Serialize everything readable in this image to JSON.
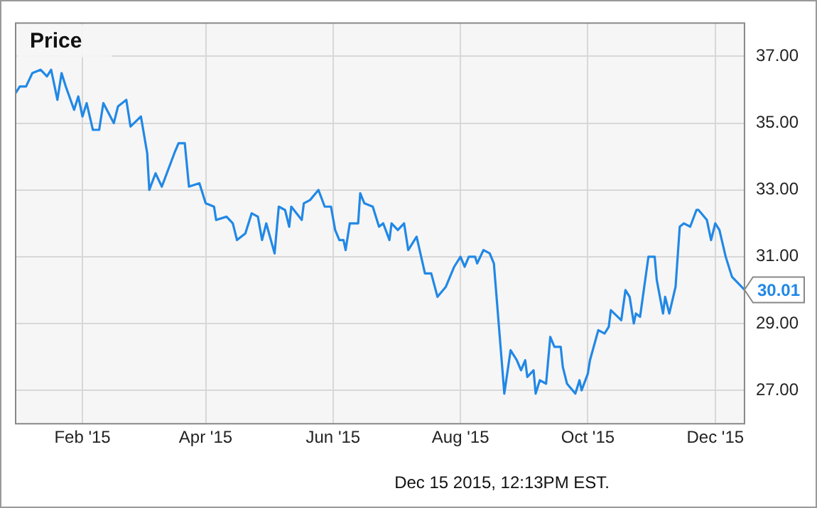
{
  "chart_data": {
    "type": "line",
    "title": "Price",
    "annotations": [
      {
        "text": "30.01",
        "x": "2015-12-15",
        "y": 30.01
      },
      "Dec 15 2015, 12:13PM EST."
    ],
    "x": [
      "2014-12-31",
      "2015-01-02",
      "2015-01-05",
      "2015-01-08",
      "2015-01-12",
      "2015-01-15",
      "2015-01-17",
      "2015-01-20",
      "2015-01-22",
      "2015-01-24",
      "2015-01-28",
      "2015-01-30",
      "2015-02-01",
      "2015-02-03",
      "2015-02-06",
      "2015-02-09",
      "2015-02-11",
      "2015-02-16",
      "2015-02-18",
      "2015-02-22",
      "2015-02-24",
      "2015-03-01",
      "2015-03-04",
      "2015-03-05",
      "2015-03-08",
      "2015-03-11",
      "2015-03-17",
      "2015-03-19",
      "2015-03-22",
      "2015-03-24",
      "2015-03-29",
      "2015-04-01",
      "2015-04-05",
      "2015-04-06",
      "2015-04-11",
      "2015-04-14",
      "2015-04-16",
      "2015-04-20",
      "2015-04-23",
      "2015-04-26",
      "2015-04-28",
      "2015-04-30",
      "2015-05-04",
      "2015-05-06",
      "2015-05-09",
      "2015-05-11",
      "2015-05-12",
      "2015-05-17",
      "2015-05-18",
      "2015-05-21",
      "2015-05-25",
      "2015-05-28",
      "2015-05-31",
      "2015-06-02",
      "2015-06-04",
      "2015-06-06",
      "2015-06-07",
      "2015-06-09",
      "2015-06-13",
      "2015-06-14",
      "2015-06-16",
      "2015-06-20",
      "2015-06-23",
      "2015-06-25",
      "2015-06-28",
      "2015-06-29",
      "2015-07-02",
      "2015-07-05",
      "2015-07-07",
      "2015-07-11",
      "2015-07-15",
      "2015-07-18",
      "2015-07-21",
      "2015-07-25",
      "2015-07-29",
      "2015-08-01",
      "2015-08-03",
      "2015-08-05",
      "2015-08-08",
      "2015-08-09",
      "2015-08-12",
      "2015-08-15",
      "2015-08-17",
      "2015-08-22",
      "2015-08-25",
      "2015-08-28",
      "2015-08-30",
      "2015-09-01",
      "2015-09-02",
      "2015-09-05",
      "2015-09-06",
      "2015-09-08",
      "2015-09-11",
      "2015-09-13",
      "2015-09-15",
      "2015-09-18",
      "2015-09-19",
      "2015-09-21",
      "2015-09-25",
      "2015-09-27",
      "2015-09-28",
      "2015-10-01",
      "2015-10-02",
      "2015-10-06",
      "2015-10-09",
      "2015-10-11",
      "2015-10-12",
      "2015-10-17",
      "2015-10-19",
      "2015-10-21",
      "2015-10-23",
      "2015-10-24",
      "2015-10-26",
      "2015-10-30",
      "2015-11-02",
      "2015-11-03",
      "2015-11-06",
      "2015-11-07",
      "2015-11-09",
      "2015-11-12",
      "2015-11-14",
      "2015-11-16",
      "2015-11-19",
      "2015-11-22",
      "2015-11-23",
      "2015-11-27",
      "2015-11-29",
      "2015-12-01",
      "2015-12-03",
      "2015-12-06",
      "2015-12-09",
      "2015-12-15"
    ],
    "series": [
      {
        "color": "#2188e6",
        "values": [
          35.9,
          36.1,
          36.1,
          36.5,
          36.6,
          36.4,
          36.6,
          35.7,
          36.5,
          36.1,
          35.4,
          35.8,
          35.2,
          35.6,
          34.8,
          34.8,
          35.6,
          35.0,
          35.5,
          35.7,
          34.9,
          35.2,
          34.1,
          33.0,
          33.5,
          33.1,
          34.1,
          34.4,
          34.4,
          33.1,
          33.2,
          32.6,
          32.5,
          32.1,
          32.2,
          32.0,
          31.5,
          31.7,
          32.3,
          32.2,
          31.5,
          32.0,
          31.1,
          32.5,
          32.4,
          31.9,
          32.5,
          32.1,
          32.6,
          32.7,
          33.0,
          32.5,
          32.5,
          31.8,
          31.5,
          31.5,
          31.2,
          32.0,
          32.0,
          32.9,
          32.6,
          32.5,
          31.9,
          32.0,
          31.5,
          32.0,
          31.8,
          32.0,
          31.2,
          31.6,
          30.5,
          30.5,
          29.8,
          30.1,
          30.7,
          31.0,
          30.7,
          31.0,
          31.0,
          30.8,
          31.2,
          31.1,
          30.8,
          26.9,
          28.2,
          27.9,
          27.6,
          27.9,
          27.4,
          27.6,
          26.9,
          27.3,
          27.2,
          28.6,
          28.3,
          28.3,
          27.7,
          27.2,
          26.9,
          27.3,
          27.0,
          27.5,
          27.9,
          28.8,
          28.7,
          28.9,
          29.4,
          29.1,
          30.0,
          29.8,
          29.0,
          29.3,
          29.2,
          31.0,
          31.0,
          30.3,
          29.3,
          29.8,
          29.3,
          30.1,
          31.9,
          32.0,
          31.9,
          32.4,
          32.4,
          32.1,
          31.5,
          32.0,
          31.8,
          31.0,
          30.4,
          30.01
        ]
      }
    ],
    "xlim": [
      "2014-12-31",
      "2015-12-15"
    ],
    "xticks": [
      {
        "value": "2015-02-01",
        "label": "Feb '15"
      },
      {
        "value": "2015-04-01",
        "label": "Apr '15"
      },
      {
        "value": "2015-06-01",
        "label": "Jun '15"
      },
      {
        "value": "2015-08-01",
        "label": "Aug '15"
      },
      {
        "value": "2015-10-01",
        "label": "Oct '15"
      },
      {
        "value": "2015-12-01",
        "label": "Dec '15"
      }
    ],
    "ylim": [
      26,
      38
    ],
    "yticks": [
      {
        "value": 27,
        "label": "27.00"
      },
      {
        "value": 29,
        "label": "29.00"
      },
      {
        "value": 31,
        "label": "31.00"
      },
      {
        "value": 33,
        "label": "33.00"
      },
      {
        "value": 35,
        "label": "35.00"
      },
      {
        "value": 37,
        "label": "37.00"
      }
    ],
    "grid": true,
    "legend": false,
    "marker": "none",
    "line_style": "solid"
  }
}
